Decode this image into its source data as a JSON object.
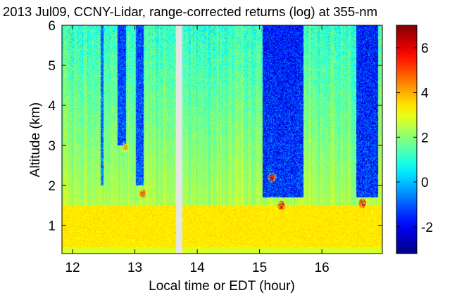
{
  "chart_data": {
    "type": "heatmap",
    "title": "2013 Jul09, CCNY-Lidar, range-corrected returns (log) at 355-nm",
    "xlabel": "Local time or EDT (hour)",
    "ylabel": "Altitude (km)",
    "xlim": [
      11.83,
      16.97
    ],
    "ylim": [
      0.3,
      6.0
    ],
    "xticks": [
      12,
      13,
      14,
      15,
      16
    ],
    "yticks": [
      1,
      2,
      3,
      4,
      5,
      6
    ],
    "colorbar": {
      "colormap": "jet",
      "range": [
        -3.2,
        7.0
      ],
      "ticks": [
        -2,
        0,
        2,
        4,
        6
      ]
    },
    "data_gap": [
      13.66,
      13.76
    ],
    "boundary_layer_top_km": 1.5,
    "features": [
      {
        "kind": "boundary-layer",
        "x_range": [
          11.83,
          16.97
        ],
        "altitude_km": [
          0.3,
          1.5
        ],
        "value": 3.5
      },
      {
        "kind": "low-return-column",
        "x_range": [
          12.45,
          12.5
        ],
        "altitude_km": [
          2.0,
          6.0
        ],
        "value": -1.5
      },
      {
        "kind": "low-return-column",
        "x_range": [
          12.72,
          12.86
        ],
        "altitude_km": [
          3.0,
          6.0
        ],
        "value": -2.0
      },
      {
        "kind": "low-return-column",
        "x_range": [
          13.02,
          13.14
        ],
        "altitude_km": [
          2.0,
          6.0
        ],
        "value": -2.0
      },
      {
        "kind": "low-return-column",
        "x_range": [
          15.05,
          15.7
        ],
        "altitude_km": [
          1.7,
          6.0
        ],
        "value": -2.5
      },
      {
        "kind": "low-return-column",
        "x_range": [
          16.55,
          16.9
        ],
        "altitude_km": [
          1.7,
          6.0
        ],
        "value": -2.5
      },
      {
        "kind": "cloud",
        "x": 12.85,
        "altitude_km": 2.95,
        "value": 4.5
      },
      {
        "kind": "cloud",
        "x": 13.13,
        "altitude_km": 1.8,
        "value": 5.5
      },
      {
        "kind": "cloud",
        "x": 15.2,
        "altitude_km": 2.2,
        "value": 5.5
      },
      {
        "kind": "cloud",
        "x": 15.35,
        "altitude_km": 1.5,
        "value": 6.5
      },
      {
        "kind": "cloud",
        "x": 16.65,
        "altitude_km": 1.55,
        "value": 6.5
      }
    ]
  }
}
